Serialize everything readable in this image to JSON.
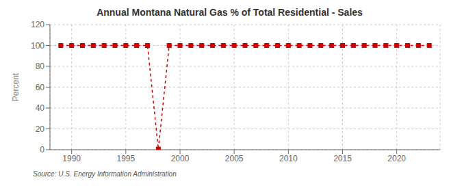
{
  "chart_data": {
    "type": "line",
    "title": "Annual Montana Natural Gas % of Total Residential - Sales",
    "ylabel": "Percent",
    "annotations": [
      "Source: U.S. Energy Information Administration"
    ],
    "x": [
      1989,
      1990,
      1991,
      1992,
      1993,
      1994,
      1995,
      1996,
      1997,
      1998,
      1999,
      2000,
      2001,
      2002,
      2003,
      2004,
      2005,
      2006,
      2007,
      2008,
      2009,
      2010,
      2011,
      2012,
      2013,
      2014,
      2015,
      2016,
      2017,
      2018,
      2019,
      2020,
      2021,
      2022,
      2023
    ],
    "values": [
      100,
      100,
      100,
      100,
      100,
      100,
      100,
      100,
      100,
      0.5,
      100,
      100,
      100,
      100,
      100,
      100,
      100,
      100,
      100,
      100,
      100,
      100,
      100,
      100,
      100,
      100,
      100,
      100,
      100,
      100,
      100,
      100,
      100,
      100,
      100
    ],
    "color": "#cc0000",
    "marker": "square",
    "line_style": "dashed",
    "xlim": [
      1988,
      2024
    ],
    "xticks": [
      1990,
      1995,
      2000,
      2005,
      2010,
      2015,
      2020
    ],
    "ylim": [
      0,
      120
    ],
    "yticks": [
      0,
      20,
      40,
      60,
      80,
      100,
      120
    ],
    "grid": true
  }
}
